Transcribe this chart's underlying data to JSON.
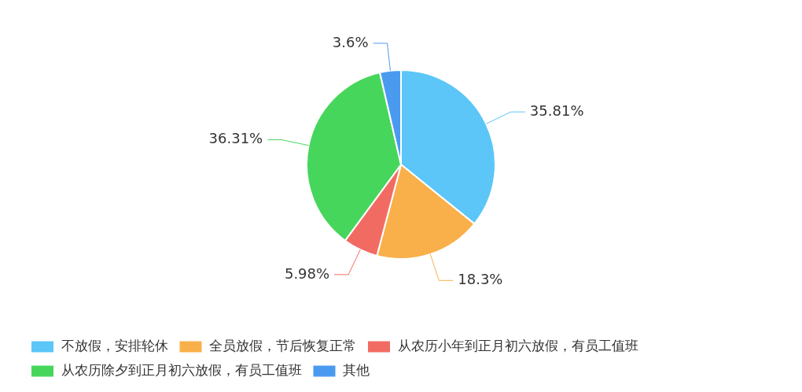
{
  "chart_data": {
    "type": "pie",
    "categories": [
      "不放假，安排轮休",
      "全员放假，节后恢复正常",
      "从农历小年到正月初六放假，有员工值班",
      "从农历除夕到正月初六放假，有员工值班",
      "其他"
    ],
    "values": [
      35.81,
      18.3,
      5.98,
      36.31,
      3.6
    ],
    "colors": [
      "#5bc6f7",
      "#f9b04a",
      "#f26b63",
      "#47d65c",
      "#4a9af0"
    ],
    "value_labels": [
      "35.81%",
      "18.3%",
      "5.98%",
      "36.31%",
      "3.6%"
    ],
    "legend": "bottom left"
  }
}
